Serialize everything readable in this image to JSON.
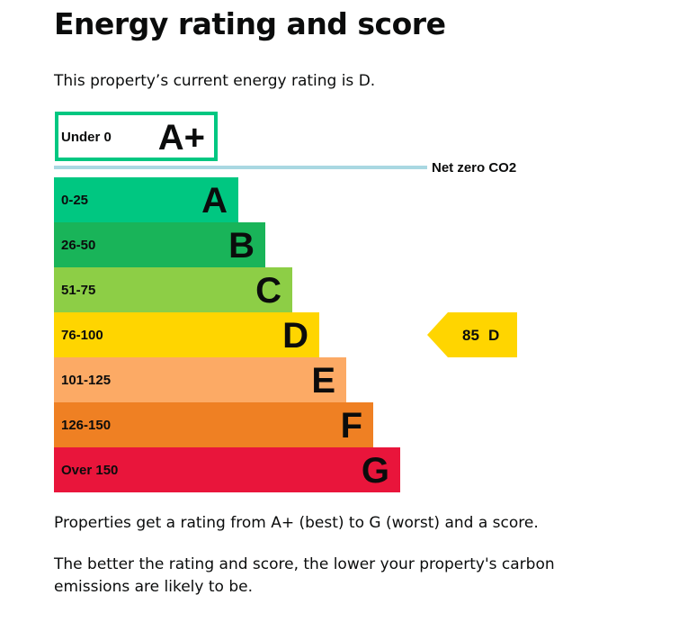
{
  "page": {
    "title": "Energy rating and score",
    "intro": "This property’s current energy rating is D.",
    "paragraph_1": "Properties get a rating from A+ (best) to G (worst) and a score.",
    "paragraph_2": "The better the rating and score, the lower your property's carbon emissions are likely to be."
  },
  "chart_data": {
    "type": "bar",
    "categories": [
      "A+",
      "A",
      "B",
      "C",
      "D",
      "E",
      "F",
      "G"
    ],
    "bands": [
      {
        "letter": "A+",
        "range": "Under 0",
        "color": "#00c781",
        "style": "outline"
      },
      {
        "letter": "A",
        "range": "0-25",
        "color": "#00c781"
      },
      {
        "letter": "B",
        "range": "26-50",
        "color": "#19b459"
      },
      {
        "letter": "C",
        "range": "51-75",
        "color": "#8dce46"
      },
      {
        "letter": "D",
        "range": "76-100",
        "color": "#ffd500"
      },
      {
        "letter": "E",
        "range": "101-125",
        "color": "#fcaa65"
      },
      {
        "letter": "F",
        "range": "126-150",
        "color": "#ef8023"
      },
      {
        "letter": "G",
        "range": "Over 150",
        "color": "#e9153b"
      }
    ],
    "net_zero": {
      "label": "Net zero CO2",
      "color": "#a9d8e2"
    },
    "current": {
      "score": "85",
      "band": "D",
      "color": "#ffd500"
    }
  }
}
